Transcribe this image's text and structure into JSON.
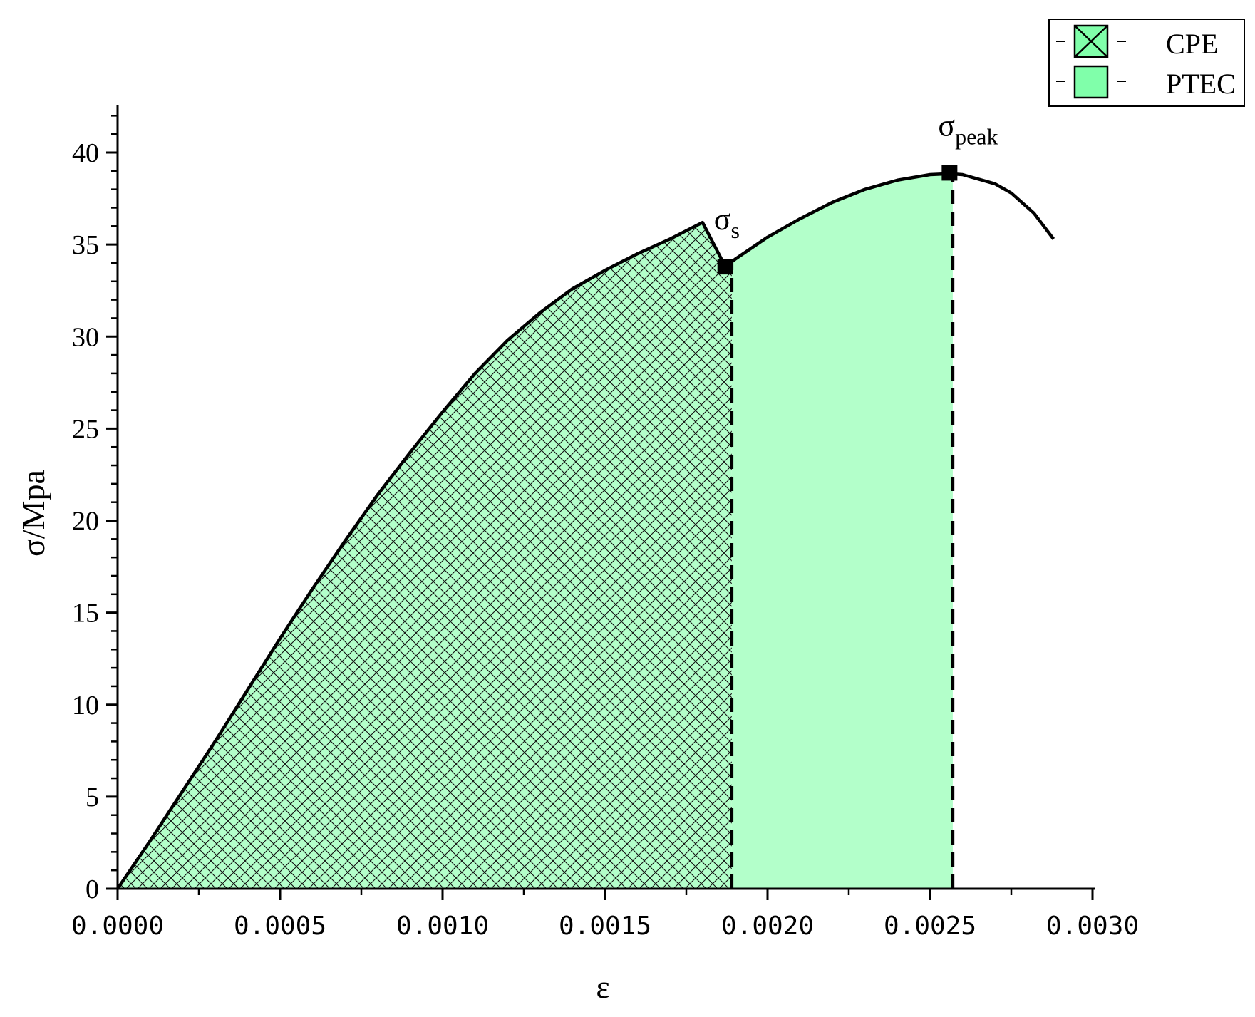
{
  "chart_data": {
    "type": "area",
    "title": "",
    "xlabel": "ε",
    "ylabel": "σ/Mpa",
    "xlim": [
      0,
      0.003
    ],
    "ylim": [
      0,
      42
    ],
    "x_ticks": [
      0,
      0.0005,
      0.001,
      0.0015,
      0.002,
      0.0025,
      0.003
    ],
    "x_tick_labels": [
      "0.0000",
      "0.0005",
      "0.0010",
      "0.0015",
      "0.0020",
      "0.0025",
      "0.0030"
    ],
    "y_ticks": [
      0,
      5,
      10,
      15,
      20,
      25,
      30,
      35,
      40
    ],
    "y_tick_labels": [
      "0",
      "5",
      "10",
      "15",
      "20",
      "25",
      "30",
      "35",
      "40"
    ],
    "grid": false,
    "legend_position": "top-right",
    "colors": {
      "fill": "#b3ffca",
      "legend_fill": "#80ffaa",
      "hatch": "#111111",
      "line": "#000000"
    },
    "series": [
      {
        "name": "CPE",
        "style": "crosshatch",
        "x_range": [
          0,
          0.00189
        ]
      },
      {
        "name": "PTEC",
        "style": "solid-fill",
        "x_range": [
          0.00189,
          0.00257
        ]
      }
    ],
    "curve": {
      "x": [
        0,
        0.0001,
        0.0002,
        0.0003,
        0.0004,
        0.0005,
        0.0006,
        0.0007,
        0.0008,
        0.0009,
        0.001,
        0.0011,
        0.0012,
        0.0013,
        0.0014,
        0.0015,
        0.0016,
        0.0017,
        0.0018,
        0.00187,
        0.0019,
        0.002,
        0.0021,
        0.0022,
        0.0023,
        0.0024,
        0.0025,
        0.00256,
        0.0026,
        0.0027,
        0.00275,
        0.00282,
        0.00285,
        0.00288
      ],
      "y": [
        0,
        2.6,
        5.3,
        8.0,
        10.8,
        13.6,
        16.3,
        18.9,
        21.4,
        23.7,
        25.9,
        28.0,
        29.8,
        31.3,
        32.6,
        33.6,
        34.5,
        35.3,
        36.2,
        33.8,
        34.2,
        35.4,
        36.4,
        37.3,
        38.0,
        38.5,
        38.8,
        38.85,
        38.8,
        38.3,
        37.8,
        36.7,
        36.0,
        35.3
      ]
    },
    "markers": [
      {
        "label": "σ",
        "subscript": "s",
        "x": 0.00187,
        "y": 33.8
      },
      {
        "label": "σ",
        "subscript": "peak",
        "x": 0.00256,
        "y": 38.9
      }
    ],
    "dashed_lines_x": [
      0.00189,
      0.00257
    ]
  }
}
